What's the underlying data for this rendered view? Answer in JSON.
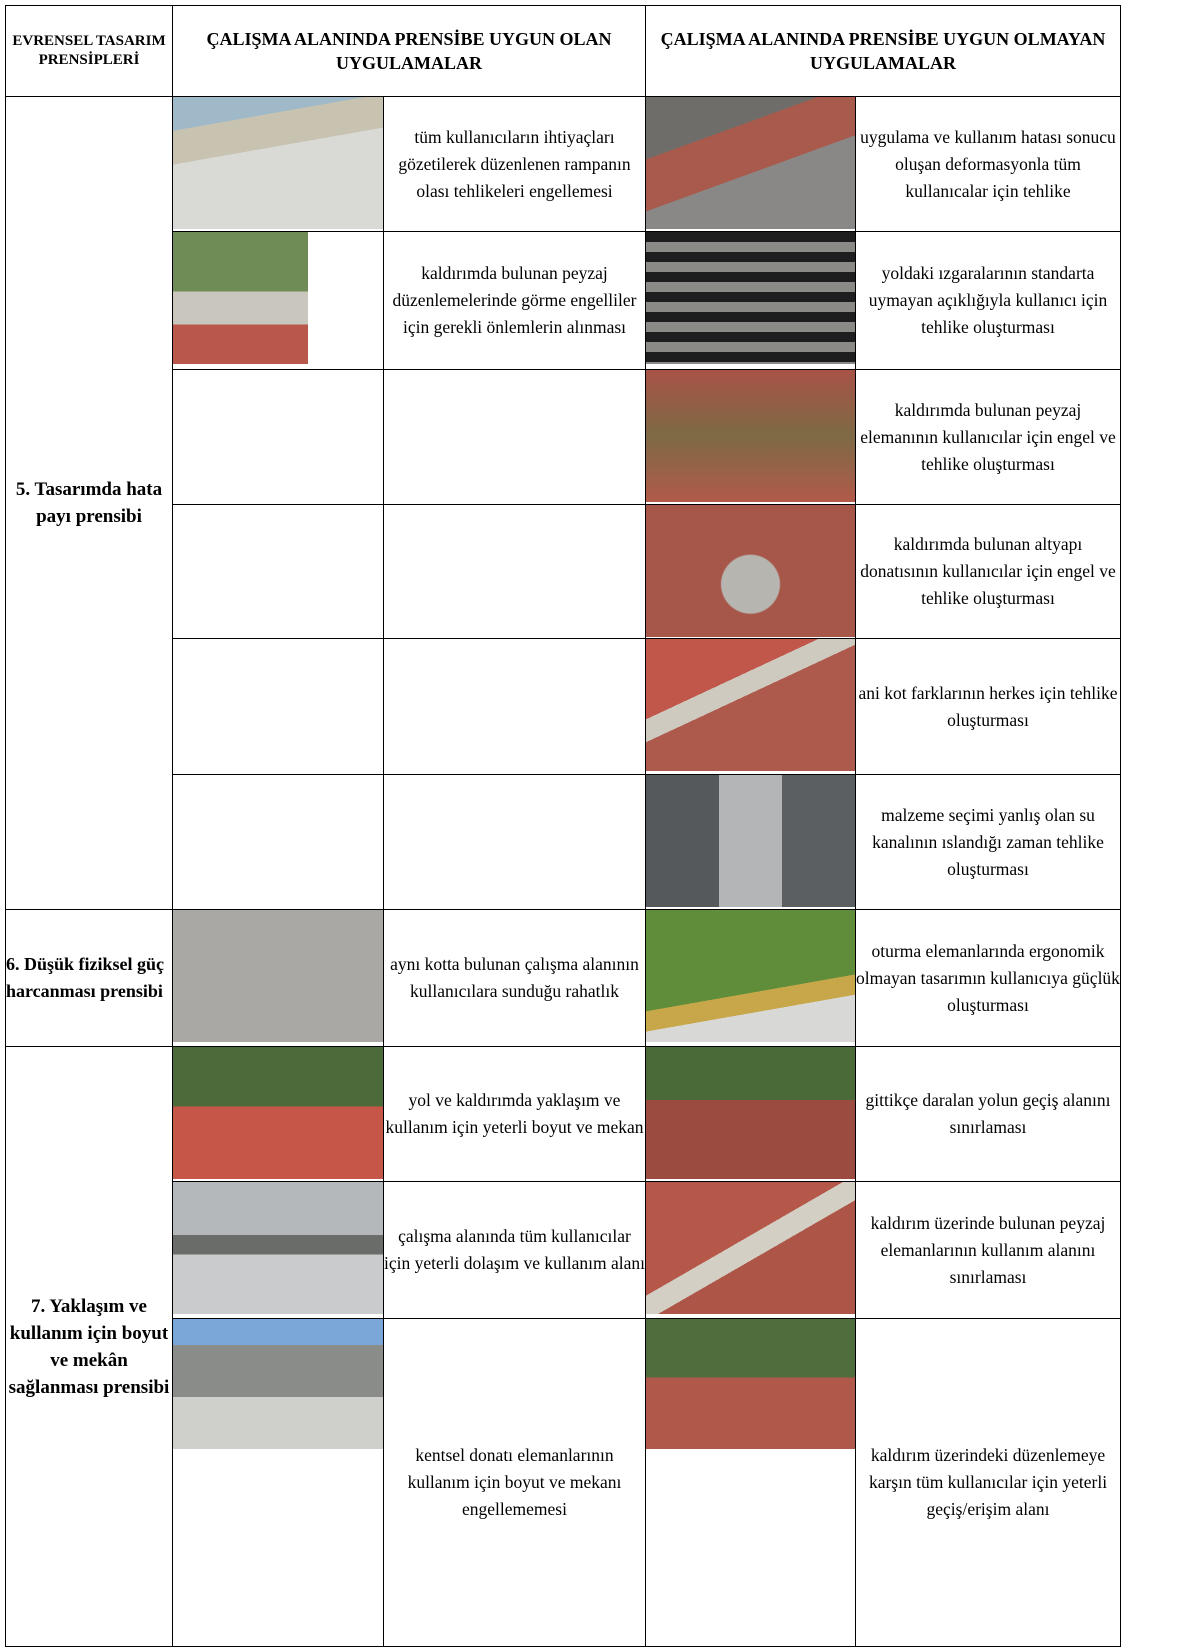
{
  "header": {
    "principles": "EVRENSEL TASARIM PRENSİPLERİ",
    "suitable": "ÇALIŞMA ALANINDA PRENSİBE UYGUN OLAN UYGULAMALAR",
    "unsuitable": "ÇALIŞMA ALANINDA PRENSİBE UYGUN OLMAYAN UYGULAMALAR"
  },
  "groups": [
    {
      "principle": "5. Tasarımda hata payı prensibi",
      "rows": [
        {
          "good": "tüm kullanıcıların ihtiyaçları gözetilerek düzenlenen rampanın olası tehlikeleri engellemesi",
          "bad": "uygulama ve kullanım hatası sonucu oluşan deformasyonla tüm kullanıcalar için tehlike"
        },
        {
          "good": "kaldırımda bulunan peyzaj düzenlemelerinde görme engelliler için gerekli önlemlerin alınması",
          "bad": "yoldaki ızgaralarının standarta uymayan açıklığıyla kullanıcı için tehlike oluşturması"
        },
        {
          "bad": "kaldırımda bulunan peyzaj elemanının kullanıcılar için engel ve tehlike oluşturması"
        },
        {
          "bad": "kaldırımda bulunan altyapı donatısının kullanıcılar için engel ve tehlike oluşturması"
        },
        {
          "bad": "ani kot farklarının herkes için tehlike oluşturması"
        },
        {
          "bad": "malzeme seçimi yanlış olan su kanalının ıslandığı zaman tehlike oluşturması"
        }
      ]
    },
    {
      "principle": "6. Düşük fiziksel güç harcanması prensibi",
      "rows": [
        {
          "good": "aynı kotta bulunan çalışma alanının kullanıcılara sunduğu rahatlık",
          "bad": "oturma elemanlarında ergonomik olmayan tasarımın kullanıcıya güçlük oluşturması"
        }
      ]
    },
    {
      "principle": "7. Yaklaşım ve kullanım için boyut ve mekân sağlanması prensibi",
      "rows": [
        {
          "good": "yol ve kaldırımda yaklaşım ve kullanım için yeterli boyut ve mekan",
          "bad": "gittikçe daralan yolun geçiş alanını sınırlaması"
        },
        {
          "good": "çalışma alanında tüm kullanıcılar için yeterli dolaşım ve kullanım alanı",
          "bad": "kaldırım üzerinde bulunan peyzaj elemanlarının kullanım alanını sınırlaması"
        },
        {
          "good": "kentsel donatı elemanlarının kullanım için boyut ve mekanı engellememesi",
          "bad": "kaldırım üzerindeki düzenlemeye karşın tüm kullanıcılar için yeterli geçiş/erişim alanı"
        }
      ]
    }
  ]
}
